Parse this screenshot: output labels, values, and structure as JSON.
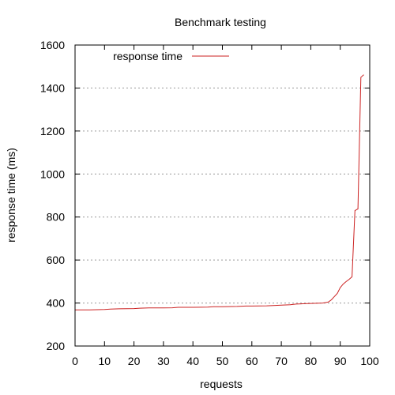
{
  "chart_data": {
    "type": "line",
    "title": "Benchmark testing",
    "xlabel": "requests",
    "ylabel": "response time (ms)",
    "xlim": [
      0,
      100
    ],
    "ylim": [
      200,
      1600
    ],
    "x_ticks": [
      "0",
      "10",
      "20",
      "30",
      "40",
      "50",
      "60",
      "70",
      "80",
      "90",
      "100"
    ],
    "y_ticks": [
      "200",
      "400",
      "600",
      "800",
      "1000",
      "1200",
      "1400",
      "1600"
    ],
    "grid": "horizontal dotted",
    "legend_position": "top-left",
    "series": [
      {
        "name": "response time",
        "color": "#cc2222",
        "x": [
          0,
          5,
          10,
          12,
          15,
          20,
          22,
          25,
          30,
          33,
          35,
          40,
          45,
          47,
          50,
          55,
          58,
          60,
          65,
          68,
          70,
          73,
          75,
          78,
          80,
          84,
          85,
          86,
          87,
          88,
          89,
          90,
          91,
          92,
          93,
          94,
          95,
          96,
          97,
          98
        ],
        "y": [
          368,
          368,
          370,
          372,
          373,
          374,
          376,
          377,
          377,
          378,
          380,
          380,
          381,
          383,
          383,
          384,
          386,
          386,
          387,
          389,
          390,
          392,
          395,
          397,
          398,
          400,
          402,
          405,
          415,
          430,
          445,
          472,
          488,
          500,
          510,
          522,
          830,
          838,
          1450,
          1462
        ]
      }
    ]
  }
}
